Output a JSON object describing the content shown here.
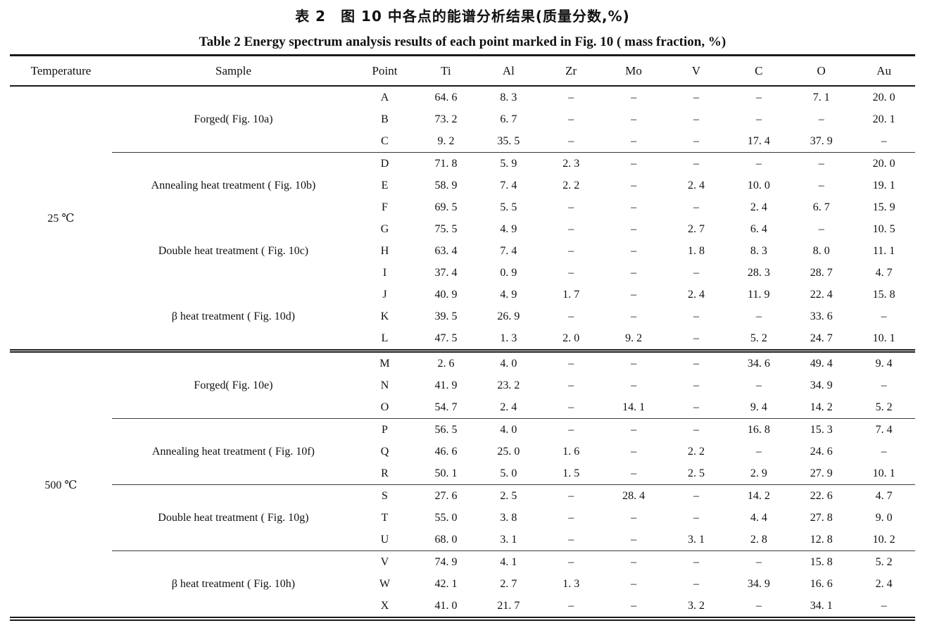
{
  "titles": {
    "cn": "表 2　图 10 中各点的能谱分析结果(质量分数,%)",
    "en": "Table 2   Energy spectrum analysis results of each point marked in Fig. 10 ( mass fraction, %)"
  },
  "table": {
    "columns": [
      "Temperature",
      "Sample",
      "Point",
      "Ti",
      "Al",
      "Zr",
      "Mo",
      "V",
      "C",
      "O",
      "Au"
    ],
    "sections": [
      {
        "temperature": "25 ℃",
        "groups": [
          {
            "sample": "Forged( Fig. 10a)",
            "rule_before": false,
            "rows": [
              {
                "point": "A",
                "values": [
                  "64. 6",
                  "8. 3",
                  "–",
                  "–",
                  "–",
                  "–",
                  "7. 1",
                  "20. 0"
                ]
              },
              {
                "point": "B",
                "values": [
                  "73. 2",
                  "6. 7",
                  "–",
                  "–",
                  "–",
                  "–",
                  "–",
                  "20. 1"
                ]
              },
              {
                "point": "C",
                "values": [
                  "9. 2",
                  "35. 5",
                  "–",
                  "–",
                  "–",
                  "17. 4",
                  "37. 9",
                  "–"
                ]
              }
            ]
          },
          {
            "sample": "Annealing heat treatment ( Fig. 10b)",
            "rule_before": true,
            "rows": [
              {
                "point": "D",
                "values": [
                  "71. 8",
                  "5. 9",
                  "2. 3",
                  "–",
                  "–",
                  "–",
                  "–",
                  "20. 0"
                ]
              },
              {
                "point": "E",
                "values": [
                  "58. 9",
                  "7. 4",
                  "2. 2",
                  "–",
                  "2. 4",
                  "10. 0",
                  "–",
                  "19. 1"
                ]
              },
              {
                "point": "F",
                "values": [
                  "69. 5",
                  "5. 5",
                  "–",
                  "–",
                  "–",
                  "2. 4",
                  "6. 7",
                  "15. 9"
                ]
              }
            ]
          },
          {
            "sample": "Double heat treatment ( Fig. 10c)",
            "rule_before": false,
            "rows": [
              {
                "point": "G",
                "values": [
                  "75. 5",
                  "4. 9",
                  "–",
                  "–",
                  "2. 7",
                  "6. 4",
                  "–",
                  "10. 5"
                ]
              },
              {
                "point": "H",
                "values": [
                  "63. 4",
                  "7. 4",
                  "–",
                  "–",
                  "1. 8",
                  "8. 3",
                  "8. 0",
                  "11. 1"
                ]
              },
              {
                "point": "I",
                "values": [
                  "37. 4",
                  "0. 9",
                  "–",
                  "–",
                  "–",
                  "28. 3",
                  "28. 7",
                  "4. 7"
                ]
              }
            ]
          },
          {
            "sample": "β heat treatment ( Fig. 10d)",
            "rule_before": false,
            "rows": [
              {
                "point": "J",
                "values": [
                  "40. 9",
                  "4. 9",
                  "1. 7",
                  "–",
                  "2. 4",
                  "11. 9",
                  "22. 4",
                  "15. 8"
                ]
              },
              {
                "point": "K",
                "values": [
                  "39. 5",
                  "26. 9",
                  "–",
                  "–",
                  "–",
                  "–",
                  "33. 6",
                  "–"
                ]
              },
              {
                "point": "L",
                "values": [
                  "47. 5",
                  "1. 3",
                  "2. 0",
                  "9. 2",
                  "–",
                  "5. 2",
                  "24. 7",
                  "10. 1"
                ]
              }
            ]
          }
        ]
      },
      {
        "temperature": "500 ℃",
        "groups": [
          {
            "sample": "Forged( Fig. 10e)",
            "rule_before": false,
            "rows": [
              {
                "point": "M",
                "values": [
                  "2. 6",
                  "4. 0",
                  "–",
                  "–",
                  "–",
                  "34. 6",
                  "49. 4",
                  "9. 4"
                ]
              },
              {
                "point": "N",
                "values": [
                  "41. 9",
                  "23. 2",
                  "–",
                  "–",
                  "–",
                  "–",
                  "34. 9",
                  "–"
                ]
              },
              {
                "point": "O",
                "values": [
                  "54. 7",
                  "2. 4",
                  "–",
                  "14. 1",
                  "–",
                  "9. 4",
                  "14. 2",
                  "5. 2"
                ]
              }
            ]
          },
          {
            "sample": "Annealing heat treatment ( Fig. 10f)",
            "rule_before": true,
            "rows": [
              {
                "point": "P",
                "values": [
                  "56. 5",
                  "4. 0",
                  "–",
                  "–",
                  "–",
                  "16. 8",
                  "15. 3",
                  "7. 4"
                ]
              },
              {
                "point": "Q",
                "values": [
                  "46. 6",
                  "25. 0",
                  "1. 6",
                  "–",
                  "2. 2",
                  "–",
                  "24. 6",
                  "–"
                ]
              },
              {
                "point": "R",
                "values": [
                  "50. 1",
                  "5. 0",
                  "1. 5",
                  "–",
                  "2. 5",
                  "2. 9",
                  "27. 9",
                  "10. 1"
                ]
              }
            ]
          },
          {
            "sample": "Double heat treatment ( Fig. 10g)",
            "rule_before": true,
            "rows": [
              {
                "point": "S",
                "values": [
                  "27. 6",
                  "2. 5",
                  "–",
                  "28. 4",
                  "–",
                  "14. 2",
                  "22. 6",
                  "4. 7"
                ]
              },
              {
                "point": "T",
                "values": [
                  "55. 0",
                  "3. 8",
                  "–",
                  "–",
                  "–",
                  "4. 4",
                  "27. 8",
                  "9. 0"
                ]
              },
              {
                "point": "U",
                "values": [
                  "68. 0",
                  "3. 1",
                  "–",
                  "–",
                  "3. 1",
                  "2. 8",
                  "12. 8",
                  "10. 2"
                ]
              }
            ]
          },
          {
            "sample": "β heat treatment ( Fig. 10h)",
            "rule_before": true,
            "rows": [
              {
                "point": "V",
                "values": [
                  "74. 9",
                  "4. 1",
                  "–",
                  "–",
                  "–",
                  "–",
                  "15. 8",
                  "5. 2"
                ]
              },
              {
                "point": "W",
                "values": [
                  "42. 1",
                  "2. 7",
                  "1. 3",
                  "–",
                  "–",
                  "34. 9",
                  "16. 6",
                  "2. 4"
                ]
              },
              {
                "point": "X",
                "values": [
                  "41. 0",
                  "21. 7",
                  "–",
                  "–",
                  "3. 2",
                  "–",
                  "34. 1",
                  "–"
                ]
              }
            ]
          }
        ]
      }
    ]
  }
}
